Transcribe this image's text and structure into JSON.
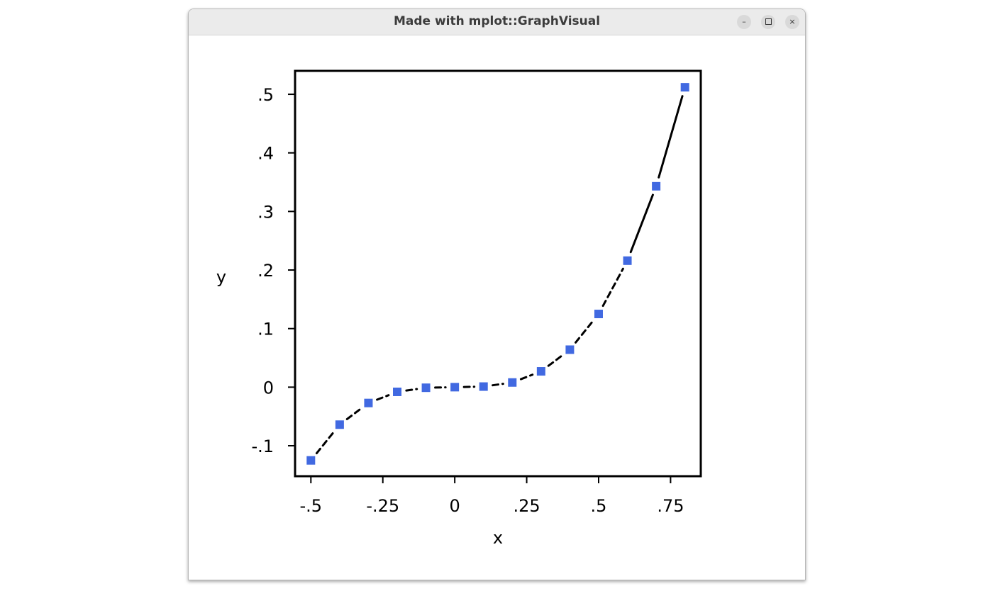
{
  "window": {
    "title": "Made with mplot::GraphVisual",
    "minimize_glyph": "–",
    "close_glyph": "×"
  },
  "chart_data": {
    "type": "scatter",
    "title": "",
    "xlabel": "x",
    "ylabel": "y",
    "xlim": [
      -0.555,
      0.855
    ],
    "ylim": [
      -0.152,
      0.54
    ],
    "x_ticks": [
      -0.5,
      -0.25,
      0,
      0.25,
      0.5,
      0.75
    ],
    "x_tick_labels": [
      "-.5",
      "-.25",
      "0",
      ".25",
      ".5",
      ".75"
    ],
    "y_ticks": [
      -0.1,
      0,
      0.1,
      0.2,
      0.3,
      0.4,
      0.5
    ],
    "y_tick_labels": [
      "-.1",
      "0",
      ".1",
      ".2",
      ".3",
      ".4",
      ".5"
    ],
    "grid": false,
    "series": [
      {
        "x": [
          -0.5,
          -0.4,
          -0.3,
          -0.2,
          -0.1,
          0.0,
          0.1,
          0.2,
          0.3,
          0.4,
          0.5,
          0.6,
          0.7,
          0.8
        ],
        "y": [
          -0.125,
          -0.064,
          -0.027,
          -0.008,
          -0.001,
          0.0,
          0.001,
          0.008,
          0.027,
          0.064,
          0.125,
          0.216,
          0.343,
          0.512
        ],
        "marker": "square",
        "marker_color": "#4169e1",
        "line_color": "#000000",
        "line_style": "dashed"
      }
    ]
  }
}
